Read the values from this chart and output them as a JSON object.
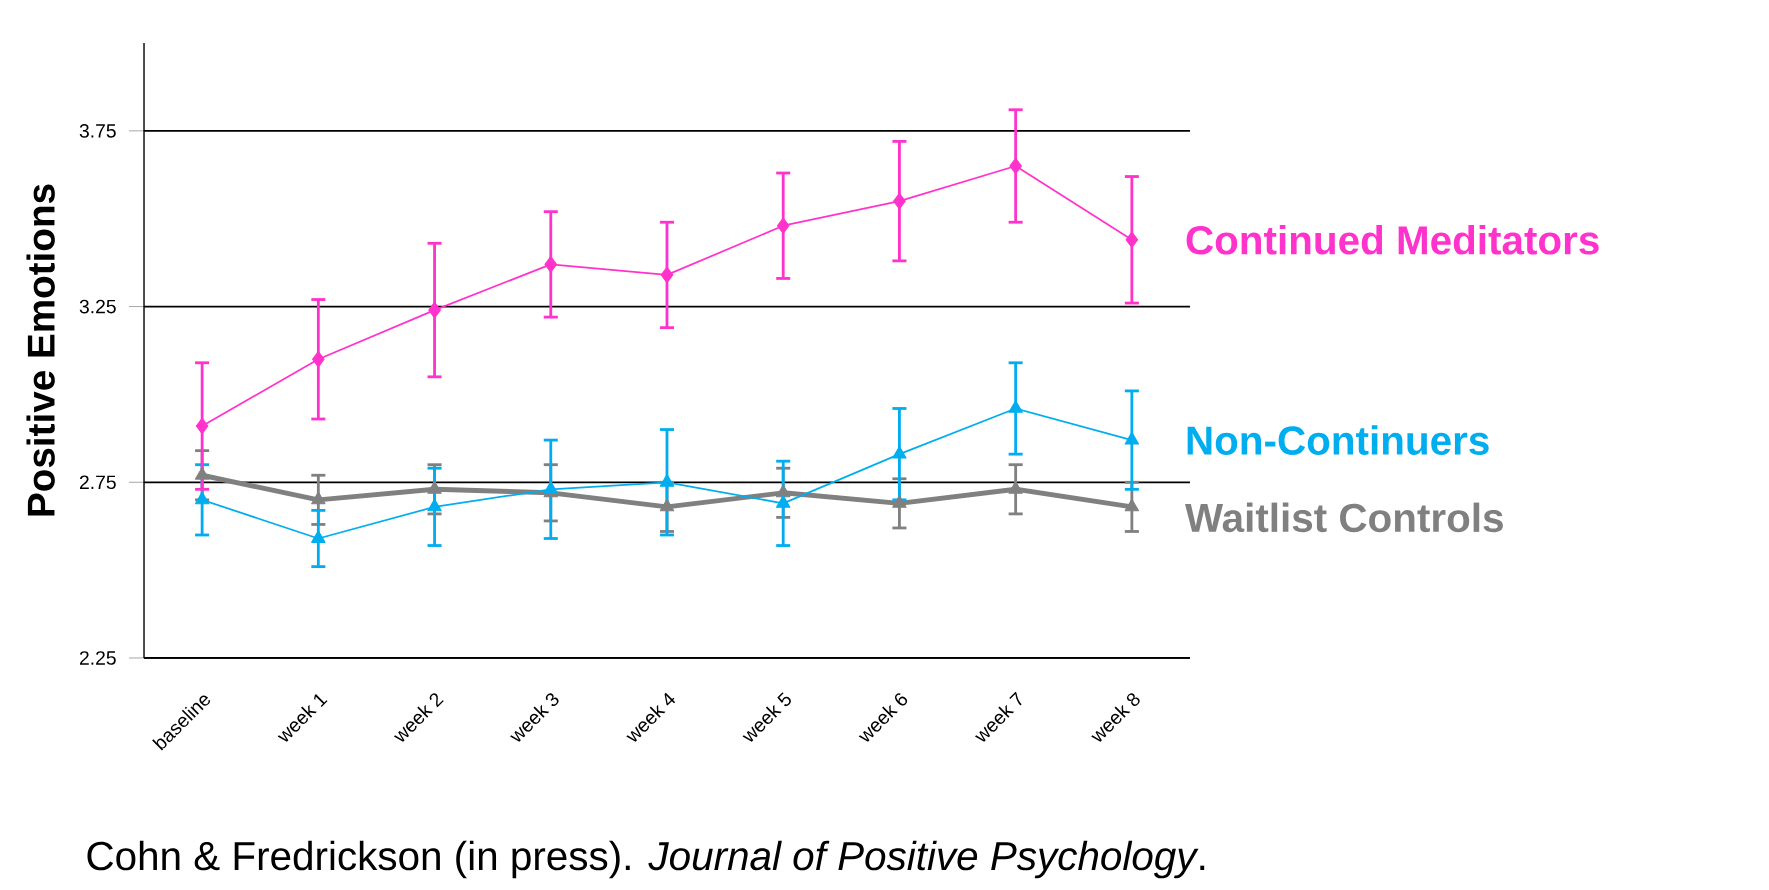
{
  "chart_data": {
    "type": "line",
    "ylabel": "Positive Emotions",
    "categories": [
      "baseline",
      "week 1",
      "week 2",
      "week 3",
      "week 4",
      "week 5",
      "week 6",
      "week 7",
      "week 8"
    ],
    "series": [
      {
        "name": "Continued Meditators",
        "color": "#ff33cc",
        "marker": "diamond",
        "values": [
          2.91,
          3.1,
          3.24,
          3.37,
          3.34,
          3.48,
          3.55,
          3.65,
          3.44
        ],
        "errors": [
          0.18,
          0.17,
          0.19,
          0.15,
          0.15,
          0.15,
          0.17,
          0.16,
          0.18
        ]
      },
      {
        "name": "Non-Continuers",
        "color": "#00aeef",
        "marker": "triangle",
        "values": [
          2.7,
          2.59,
          2.68,
          2.73,
          2.75,
          2.69,
          2.83,
          2.96,
          2.87
        ],
        "errors": [
          0.1,
          0.08,
          0.11,
          0.14,
          0.15,
          0.12,
          0.13,
          0.13,
          0.14
        ]
      },
      {
        "name": "Waitlist Controls",
        "color": "#808080",
        "marker": "triangle",
        "values": [
          2.77,
          2.7,
          2.73,
          2.72,
          2.68,
          2.72,
          2.69,
          2.73,
          2.68
        ],
        "errors": [
          0.07,
          0.07,
          0.07,
          0.08,
          0.07,
          0.07,
          0.07,
          0.07,
          0.07
        ]
      }
    ],
    "ylim": [
      2.25,
      4.0
    ],
    "yticks": [
      2.25,
      2.75,
      3.25,
      3.75
    ],
    "grid": "y",
    "line_style": "solid",
    "annotations": [
      "Cohn & Fredrickson (in press). *Journal of Positive Psychology*."
    ]
  }
}
